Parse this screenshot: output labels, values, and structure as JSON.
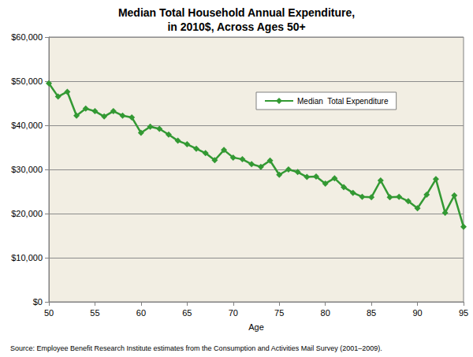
{
  "chart_data": {
    "type": "line",
    "title": "Median Total Household Annual Expenditure,\nin 2010$, Across Ages 50+",
    "x_label": "Age",
    "source": "Source: Employee Benefit Research Institute estimates from the Consumption and Activities Mail Survey (2001–2009).",
    "x": [
      50,
      51,
      52,
      53,
      54,
      55,
      56,
      57,
      58,
      59,
      60,
      61,
      62,
      63,
      64,
      65,
      66,
      67,
      68,
      69,
      70,
      71,
      72,
      73,
      74,
      75,
      76,
      77,
      78,
      79,
      80,
      81,
      82,
      83,
      84,
      85,
      86,
      87,
      88,
      89,
      90,
      91,
      92,
      93,
      94,
      95
    ],
    "series": [
      {
        "name": "Median  Total Expenditure",
        "color": "#339933",
        "marker": "diamond",
        "line_style": "solid",
        "values": [
          49500,
          46500,
          47600,
          42200,
          43800,
          43200,
          42000,
          43200,
          42200,
          41800,
          38300,
          39700,
          39200,
          37900,
          36500,
          35700,
          34700,
          33700,
          32100,
          34400,
          32700,
          32300,
          31200,
          30600,
          32000,
          28800,
          30000,
          29400,
          28300,
          28400,
          26800,
          28000,
          26000,
          24700,
          23800,
          23700,
          27500,
          23700,
          23800,
          22800,
          21200,
          24300,
          27800,
          20200,
          24100,
          17000
        ]
      }
    ],
    "xlim": [
      50,
      95
    ],
    "xticks": [
      50,
      55,
      60,
      65,
      70,
      75,
      80,
      85,
      90,
      95
    ],
    "ylim": [
      0,
      60000
    ],
    "yticks": [
      {
        "value": 0,
        "label": "$0"
      },
      {
        "value": 10000,
        "label": "$10,000"
      },
      {
        "value": 20000,
        "label": "$20,000"
      },
      {
        "value": 30000,
        "label": "$30,000"
      },
      {
        "value": 40000,
        "label": "$40,000"
      },
      {
        "value": 50000,
        "label": "$50,000"
      },
      {
        "value": 60000,
        "label": "$60,000"
      }
    ],
    "grid": true,
    "legend": "upper right"
  }
}
